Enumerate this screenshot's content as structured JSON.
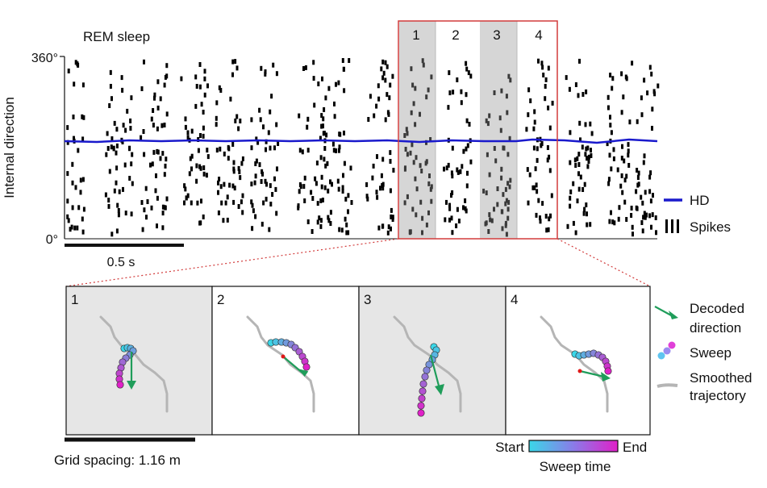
{
  "raster": {
    "title": "REM sleep",
    "ylabel": "Internal direction",
    "y_top_label": "360°",
    "y_bottom_label": "0°",
    "scalebar_label": "0.5 s",
    "highlight_windows": [
      "1",
      "2",
      "3",
      "4"
    ],
    "legend": {
      "hd_label": "HD",
      "spikes_label": "Spikes"
    },
    "colors": {
      "hd": "#1a1acc",
      "spikes": "#000000",
      "highlight_border": "#d23b3b",
      "window_shade": "#d6d6d6"
    }
  },
  "panels": [
    {
      "number": "1",
      "shaded": true
    },
    {
      "number": "2",
      "shaded": false
    },
    {
      "number": "3",
      "shaded": true
    },
    {
      "number": "4",
      "shaded": false
    }
  ],
  "legend_right": {
    "decoded_label_line1": "Decoded",
    "decoded_label_line2": "direction",
    "sweep_label": "Sweep",
    "trajectory_label_line1": "Smoothed",
    "trajectory_label_line2": "trajectory",
    "colors": {
      "decoded": "#1f9d5a",
      "trajectory": "#b5b5b5",
      "sweep_start": "#3ad7e8",
      "sweep_end": "#e020c8"
    }
  },
  "bottom": {
    "grid_spacing_label": "Grid spacing: 1.16 m",
    "colorbar_start": "Start",
    "colorbar_end": "End",
    "colorbar_title": "Sweep time"
  }
}
